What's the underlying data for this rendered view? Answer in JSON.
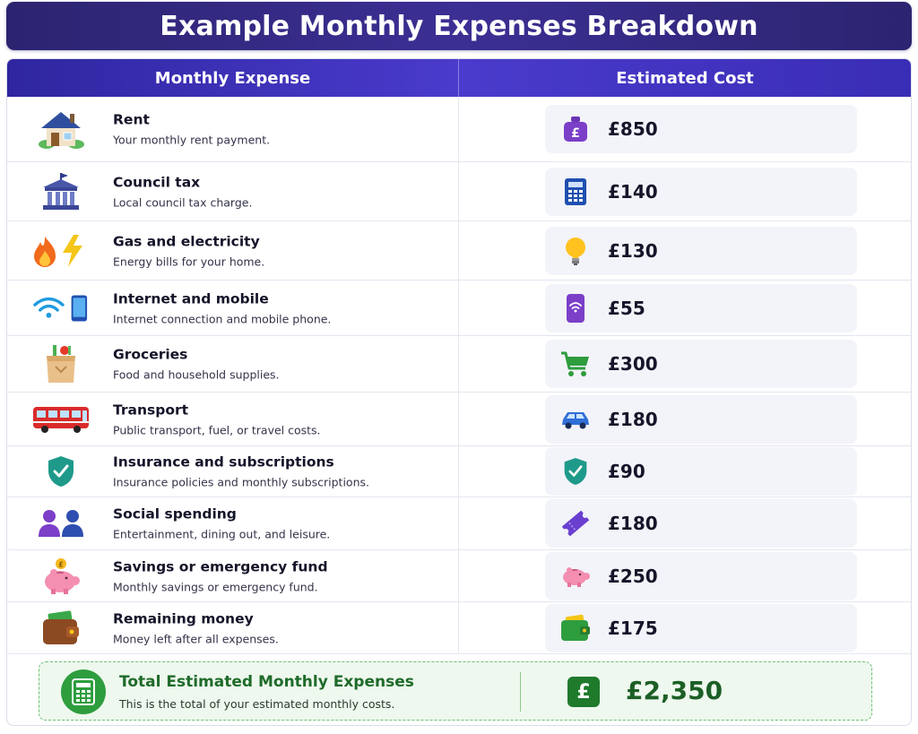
{
  "title": "Example Monthly Expenses Breakdown",
  "header": {
    "col1": "Monthly Expense",
    "col2": "Estimated Cost"
  },
  "rows": [
    {
      "name": "Rent",
      "desc": "Your monthly rent payment.",
      "cost": "£850",
      "icon": "house-icon",
      "cost_icon": "pound-bag-icon"
    },
    {
      "name": "Council tax",
      "desc": "Local council tax charge.",
      "cost": "£140",
      "icon": "government-building-icon",
      "cost_icon": "calculator-icon"
    },
    {
      "name": "Gas and electricity",
      "desc": "Energy bills for your home.",
      "cost": "£130",
      "icon": "flame-bolt-icon",
      "cost_icon": "lightbulb-icon"
    },
    {
      "name": "Internet and mobile",
      "desc": "Internet connection and mobile phone.",
      "cost": "£55",
      "icon": "wifi-phone-icon",
      "cost_icon": "phone-signal-icon"
    },
    {
      "name": "Groceries",
      "desc": "Food and household supplies.",
      "cost": "£300",
      "icon": "grocery-bag-icon",
      "cost_icon": "shopping-cart-icon"
    },
    {
      "name": "Transport",
      "desc": "Public transport, fuel, or travel costs.",
      "cost": "£180",
      "icon": "bus-icon",
      "cost_icon": "car-icon"
    },
    {
      "name": "Insurance and subscriptions",
      "desc": "Insurance policies and monthly subscriptions.",
      "cost": "£90",
      "icon": "shield-check-icon",
      "cost_icon": "shield-check-icon"
    },
    {
      "name": "Social spending",
      "desc": "Entertainment, dining out, and leisure.",
      "cost": "£180",
      "icon": "people-icon",
      "cost_icon": "ticket-icon"
    },
    {
      "name": "Savings or emergency fund",
      "desc": "Monthly savings or emergency fund.",
      "cost": "£250",
      "icon": "piggy-bank-coin-icon",
      "cost_icon": "piggy-bank-icon"
    },
    {
      "name": "Remaining money",
      "desc": "Money left after all expenses.",
      "cost": "£175",
      "icon": "wallet-cash-icon",
      "cost_icon": "wallet-icon"
    }
  ],
  "total": {
    "title": "Total Estimated Monthly Expenses",
    "desc": "This is the total of your estimated monthly costs.",
    "symbol": "£",
    "amount": "£2,350"
  },
  "colors": {
    "title_bg": "#2c2470",
    "header_bg": "#3a2db5",
    "total_green": "#2e9d3e",
    "total_bg": "#eef8ee"
  }
}
